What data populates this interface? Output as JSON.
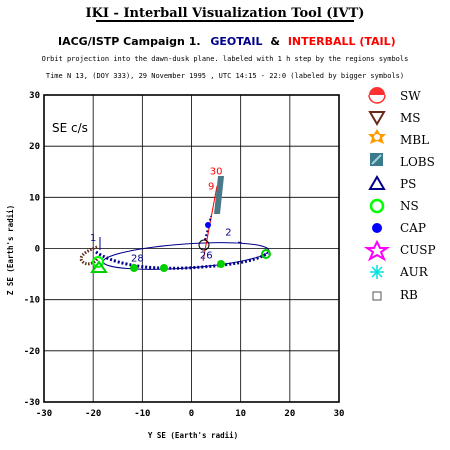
{
  "header": {
    "title": "IKI - Interball Visualization Tool (IVT)",
    "campaign": "IACG/ISTP Campaign 1.",
    "sat1": "GEOTAIL",
    "amp": "&",
    "sat2": "INTERBALL (TAIL)",
    "subtitle": "Orbit projection into the dawn-dusk plane. labeled with 1 h step by the regions symbols",
    "time_info": "Time N 13, (DOY 333), 29 November 1995 ,  UTC 14:15 - 22:0 (labeled by bigger symbols)"
  },
  "colors": {
    "geotail": "#00008b",
    "interball": "#ff0000",
    "title_underline": "#000000"
  },
  "chart_data": {
    "type": "scatter",
    "frame_label": "SE c/s",
    "xlabel": "Y SE (Earth's radii)",
    "ylabel": "Z SE (Earth's radii)",
    "xlim": [
      -30,
      30
    ],
    "ylim": [
      -30,
      30
    ],
    "xticks": [
      -30,
      -20,
      -10,
      0,
      10,
      20,
      30
    ],
    "yticks": [
      30,
      20,
      10,
      0,
      -10,
      -20,
      -30
    ],
    "grid": true,
    "orbit_labels": [
      {
        "text": "1",
        "x": -20,
        "y": 1.5,
        "color": "#00008b"
      },
      {
        "text": "28",
        "x": -11,
        "y": -2.5,
        "color": "#00008b"
      },
      {
        "text": "26",
        "x": 3,
        "y": -2,
        "color": "#00008b"
      },
      {
        "text": "2",
        "x": 7.5,
        "y": 2.5,
        "color": "#00008b"
      },
      {
        "text": "30",
        "x": 5,
        "y": 14.5,
        "color": "#ff0000"
      },
      {
        "text": "9",
        "x": 4,
        "y": 11.5,
        "color": "#ff0000"
      }
    ],
    "legend": [
      {
        "label": "SW",
        "icon": "half-circle-red"
      },
      {
        "label": "MS",
        "icon": "triangle-down-brown"
      },
      {
        "label": "MBL",
        "icon": "star-orange"
      },
      {
        "label": "LOBS",
        "icon": "square-teal"
      },
      {
        "label": "PS",
        "icon": "triangle-up-navy"
      },
      {
        "label": "NS",
        "icon": "circle-green"
      },
      {
        "label": "CAP",
        "icon": "dot-blue"
      },
      {
        "label": "CUSP",
        "icon": "star-magenta"
      },
      {
        "label": "AUR",
        "icon": "asterisk-cyan"
      },
      {
        "label": "RB",
        "icon": "square-outline-gray"
      }
    ]
  }
}
